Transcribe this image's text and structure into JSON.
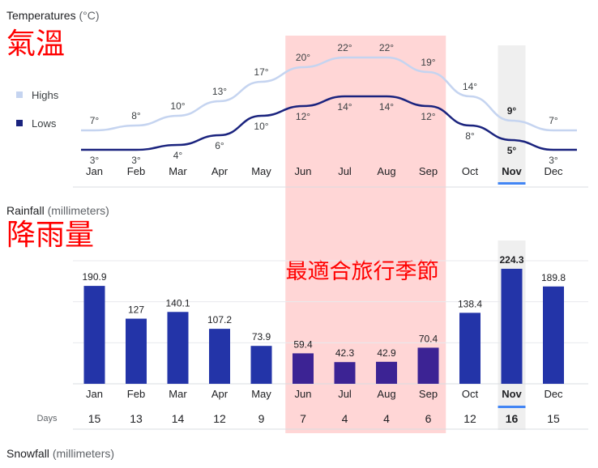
{
  "temperature_section": {
    "title": "Temperatures",
    "unit": "(°C)",
    "annotation": "氣溫",
    "legend_highs": "Highs",
    "legend_lows": "Lows"
  },
  "rainfall_section": {
    "title": "Rainfall",
    "unit": "(millimeters)",
    "annotation": "降雨量",
    "best_season_label": "最適合旅行季節",
    "days_label": "Days"
  },
  "snowfall_section": {
    "title": "Snowfall",
    "unit": "(millimeters)"
  },
  "selected_month": "Nov",
  "colors": {
    "highs_line": "#c5d4f0",
    "lows_line": "#1a237e",
    "rain_bar": "#2334a8",
    "rain_bar_season": "#3c2394",
    "season_highlight": "#ffd6d6",
    "selected_column": "#efefef",
    "selected_underline": "#4285f4",
    "annotation_red": "#ff0000"
  },
  "chart_data": [
    {
      "type": "line",
      "title": "Temperatures (°C)",
      "categories": [
        "Jan",
        "Feb",
        "Mar",
        "Apr",
        "May",
        "Jun",
        "Jul",
        "Aug",
        "Sep",
        "Oct",
        "Nov",
        "Dec"
      ],
      "series": [
        {
          "name": "Highs",
          "values": [
            7,
            8,
            10,
            13,
            17,
            20,
            22,
            22,
            19,
            14,
            9,
            7
          ],
          "labels": [
            "7°",
            "8°",
            "10°",
            "13°",
            "17°",
            "20°",
            "22°",
            "22°",
            "19°",
            "14°",
            "9°",
            "7°"
          ]
        },
        {
          "name": "Lows",
          "values": [
            3,
            3,
            4,
            6,
            10,
            12,
            14,
            14,
            12,
            8,
            5,
            3
          ],
          "labels": [
            "3°",
            "3°",
            "4°",
            "6°",
            "10°",
            "12°",
            "14°",
            "14°",
            "12°",
            "8°",
            "5°",
            "3°"
          ]
        }
      ],
      "highlight_range": [
        "Jun",
        "Sep"
      ],
      "legend": "left"
    },
    {
      "type": "bar",
      "title": "Rainfall (millimeters)",
      "categories": [
        "Jan",
        "Feb",
        "Mar",
        "Apr",
        "May",
        "Jun",
        "Jul",
        "Aug",
        "Sep",
        "Oct",
        "Nov",
        "Dec"
      ],
      "values": [
        190.9,
        127,
        140.1,
        107.2,
        73.9,
        59.4,
        42.3,
        42.9,
        70.4,
        138.4,
        224.3,
        189.8
      ],
      "labels": [
        "190.9",
        "127",
        "140.1",
        "107.2",
        "73.9",
        "59.4",
        "42.3",
        "42.9",
        "70.4",
        "138.4",
        "224.3",
        "189.8"
      ],
      "days": [
        15,
        13,
        14,
        12,
        9,
        7,
        4,
        4,
        6,
        12,
        16,
        15
      ],
      "ylim": [
        0,
        240
      ],
      "grid": true,
      "highlight_range": [
        "Jun",
        "Sep"
      ]
    }
  ]
}
